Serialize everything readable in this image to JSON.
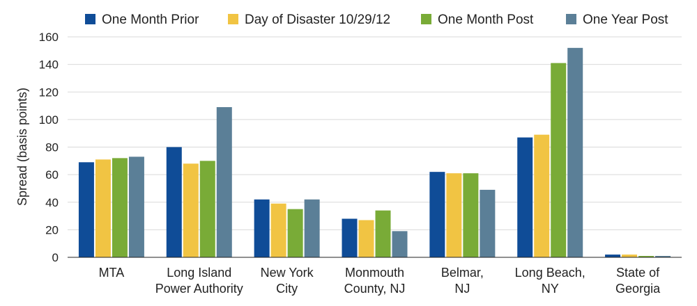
{
  "chart_data": {
    "type": "bar",
    "title": "",
    "xlabel": "",
    "ylabel": "Spread (basis points)",
    "ylim": [
      0,
      160
    ],
    "yticks": [
      0,
      20,
      40,
      60,
      80,
      100,
      120,
      140,
      160
    ],
    "grid": true,
    "legend_position": "top",
    "categories": [
      [
        "MTA"
      ],
      [
        "Long Island",
        "Power Authority"
      ],
      [
        "New York",
        "City"
      ],
      [
        "Monmouth",
        "County, NJ"
      ],
      [
        "Belmar,",
        "NJ"
      ],
      [
        "Long Beach,",
        "NY"
      ],
      [
        "State of",
        "Georgia"
      ]
    ],
    "series": [
      {
        "name": "One Month Prior",
        "color": "#0f4c97",
        "values": [
          69,
          80,
          42,
          28,
          62,
          87,
          2
        ]
      },
      {
        "name": "Day of Disaster 10/29/12",
        "color": "#f1c443",
        "values": [
          71,
          68,
          39,
          27,
          61,
          89,
          2
        ]
      },
      {
        "name": "One Month Post",
        "color": "#79ab37",
        "values": [
          72,
          70,
          35,
          34,
          61,
          141,
          1
        ]
      },
      {
        "name": "One Year Post",
        "color": "#5b7f97",
        "values": [
          73,
          109,
          42,
          19,
          49,
          152,
          1
        ]
      }
    ]
  }
}
